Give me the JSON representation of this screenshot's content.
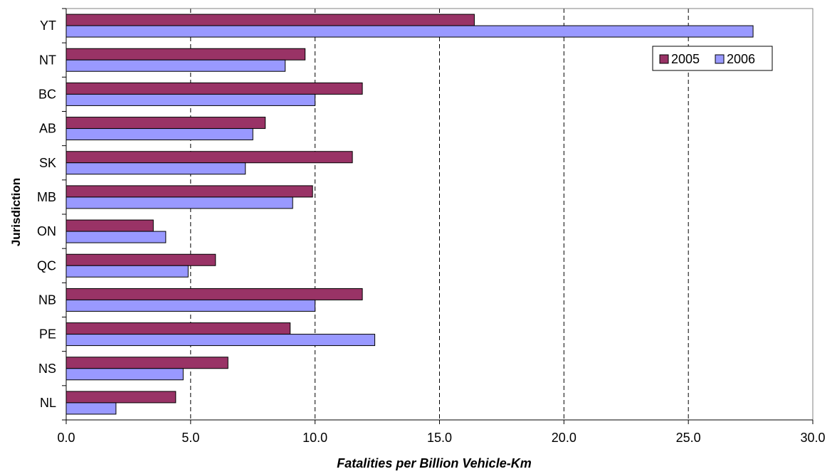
{
  "chart_data": {
    "type": "bar",
    "orientation": "horizontal",
    "xlabel": "Fatalities per Billion Vehicle-Km",
    "ylabel": "Jurisdiction",
    "xlim": [
      0,
      30
    ],
    "xticks": [
      "0.0",
      "5.0",
      "10.0",
      "15.0",
      "20.0",
      "25.0",
      "30.0"
    ],
    "categories": [
      "YT",
      "NT",
      "BC",
      "AB",
      "SK",
      "MB",
      "ON",
      "QC",
      "NB",
      "PE",
      "NS",
      "NL"
    ],
    "series": [
      {
        "name": "2005",
        "color": "#993366",
        "values": [
          16.4,
          9.6,
          11.9,
          8.0,
          11.5,
          9.9,
          3.5,
          6.0,
          11.9,
          9.0,
          6.5,
          4.4
        ]
      },
      {
        "name": "2006",
        "color": "#9999ff",
        "values": [
          27.6,
          8.8,
          10.0,
          7.5,
          7.2,
          9.1,
          4.0,
          4.9,
          10.0,
          12.4,
          4.7,
          2.0
        ]
      }
    ],
    "grid": "vertical dashed",
    "legend_position": "top-right"
  }
}
